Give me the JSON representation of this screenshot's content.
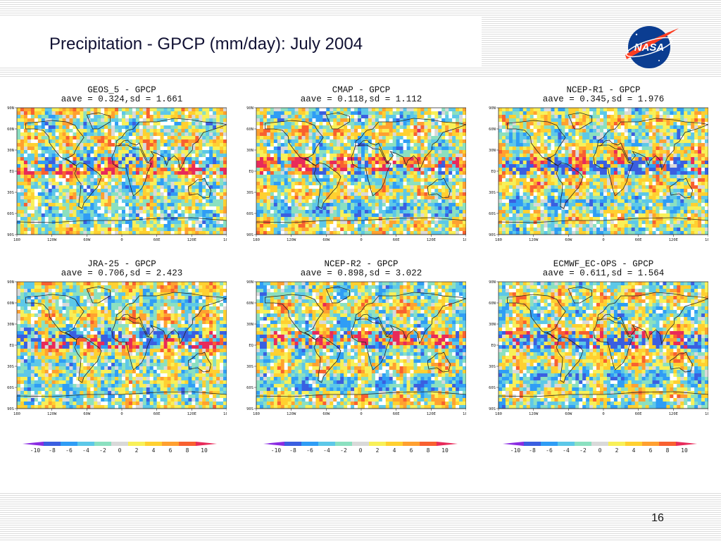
{
  "slide": {
    "title": "Precipitation - GPCP (mm/day): July 2004",
    "page_number": "16",
    "logo_text": "NASA",
    "colors": {
      "title": "#111133",
      "stripe": "#dddddd",
      "logo_blue": "#0b3d91",
      "logo_red": "#fc3d21"
    }
  },
  "panels": [
    {
      "title": "GEOS_5 - GPCP",
      "stats": "aave = 0.324,sd = 1.661",
      "aave": 0.324,
      "sd": 1.661
    },
    {
      "title": "CMAP - GPCP",
      "stats": "aave = 0.118,sd = 1.112",
      "aave": 0.118,
      "sd": 1.112
    },
    {
      "title": "NCEP-R1 - GPCP",
      "stats": "aave = 0.345,sd = 1.976",
      "aave": 0.345,
      "sd": 1.976
    },
    {
      "title": "JRA-25 - GPCP",
      "stats": "aave = 0.706,sd = 2.423",
      "aave": 0.706,
      "sd": 2.423
    },
    {
      "title": "NCEP-R2 - GPCP",
      "stats": "aave = 0.898,sd = 3.022",
      "aave": 0.898,
      "sd": 3.022
    },
    {
      "title": "ECMWF_EC-OPS - GPCP",
      "stats": "aave = 0.611,sd = 1.564",
      "aave": 0.611,
      "sd": 1.564
    }
  ],
  "map_axes": {
    "lat_labels": [
      "90N",
      "60N",
      "30N",
      "EQ",
      "30S",
      "60S",
      "90S"
    ],
    "lon_labels": [
      "180",
      "120W",
      "60W",
      "0",
      "60E",
      "120E",
      "180"
    ]
  },
  "colorbar": {
    "labels": [
      "-10",
      "-8",
      "-6",
      "-4",
      "-2",
      "0",
      "2",
      "4",
      "6",
      "8",
      "10"
    ],
    "colors": [
      "#8a2be2",
      "#3a5fe0",
      "#2f9df5",
      "#5dc8e8",
      "#8be0c0",
      "#d9d9d9",
      "#f8f058",
      "#ffd030",
      "#ffa030",
      "#f86030",
      "#e82a5a"
    ],
    "count": 3
  }
}
